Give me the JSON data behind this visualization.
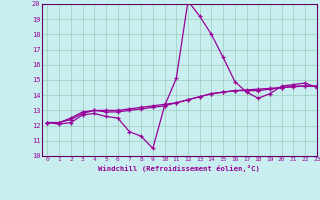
{
  "xlabel": "Windchill (Refroidissement éolien,°C)",
  "x": [
    0,
    1,
    2,
    3,
    4,
    5,
    6,
    7,
    8,
    9,
    10,
    11,
    12,
    13,
    14,
    15,
    16,
    17,
    18,
    19,
    20,
    21,
    22,
    23
  ],
  "line1": [
    12.2,
    12.1,
    12.2,
    12.7,
    12.8,
    12.6,
    12.5,
    11.6,
    11.3,
    10.5,
    13.3,
    15.1,
    20.2,
    19.2,
    18.0,
    16.5,
    14.9,
    14.2,
    13.8,
    14.1,
    14.6,
    14.7,
    14.8,
    14.5
  ],
  "line2": [
    12.2,
    12.2,
    12.5,
    12.9,
    13.0,
    12.9,
    12.9,
    13.0,
    13.1,
    13.2,
    13.3,
    13.5,
    13.7,
    13.9,
    14.1,
    14.2,
    14.3,
    14.3,
    14.3,
    14.4,
    14.5,
    14.6,
    14.6,
    14.6
  ],
  "line3": [
    12.2,
    12.2,
    12.4,
    12.8,
    13.0,
    13.0,
    13.0,
    13.1,
    13.2,
    13.3,
    13.4,
    13.5,
    13.7,
    13.9,
    14.1,
    14.2,
    14.3,
    14.35,
    14.4,
    14.45,
    14.5,
    14.55,
    14.6,
    14.6
  ],
  "line_color": "#990099",
  "bg_color": "#c8eef0",
  "grid_color": "#99ccbb",
  "axis_color": "#660066",
  "ylim": [
    10,
    20
  ],
  "xlim": [
    -0.5,
    23
  ],
  "yticks": [
    10,
    11,
    12,
    13,
    14,
    15,
    16,
    17,
    18,
    19,
    20
  ],
  "xticks": [
    0,
    1,
    2,
    3,
    4,
    5,
    6,
    7,
    8,
    9,
    10,
    11,
    12,
    13,
    14,
    15,
    16,
    17,
    18,
    19,
    20,
    21,
    22,
    23
  ]
}
